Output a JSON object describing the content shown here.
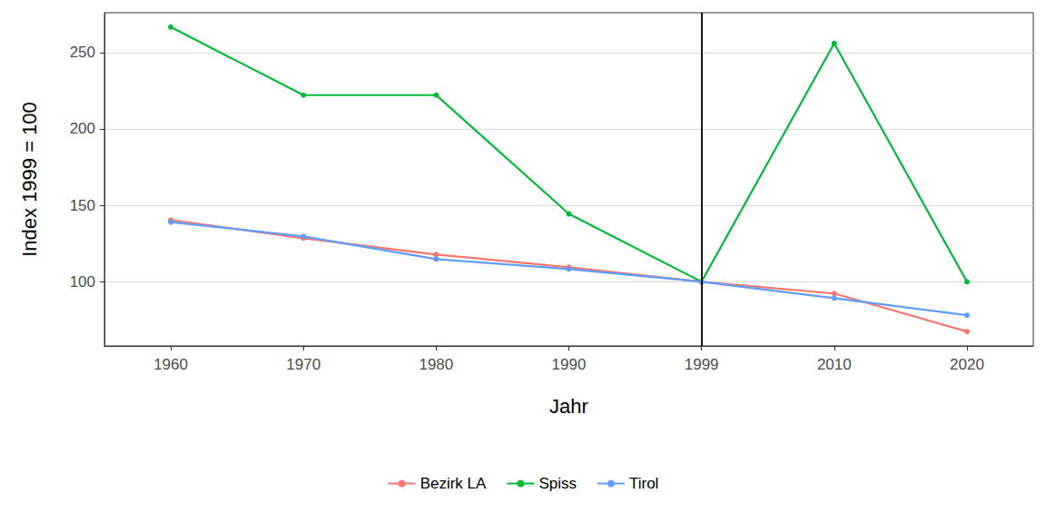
{
  "chart_data": {
    "type": "line",
    "x_label": "Jahr",
    "y_label": "Index 1999 = 100",
    "categories": [
      "1960",
      "1970",
      "1980",
      "1990",
      "1999",
      "2010",
      "2020"
    ],
    "series": [
      {
        "name": "Bezirk LA",
        "color": "#F8766D",
        "values": [
          140.3,
          128.5,
          117.8,
          109.5,
          100,
          92.3,
          67.4
        ]
      },
      {
        "name": "Spiss",
        "color": "#00BA38",
        "values": [
          266.6,
          222.1,
          222.1,
          144.4,
          100,
          255.9,
          100
        ]
      },
      {
        "name": "Tirol",
        "color": "#619CFF",
        "values": [
          139,
          129.7,
          114.8,
          108.3,
          100,
          89.3,
          78.1
        ]
      }
    ],
    "reference_line": {
      "x": "1999",
      "color": "#000000"
    },
    "ylim": [
      58,
      276
    ],
    "yticks": [
      100,
      150,
      200,
      250
    ],
    "grid": true,
    "legend": "bottom",
    "marker": "circle"
  }
}
